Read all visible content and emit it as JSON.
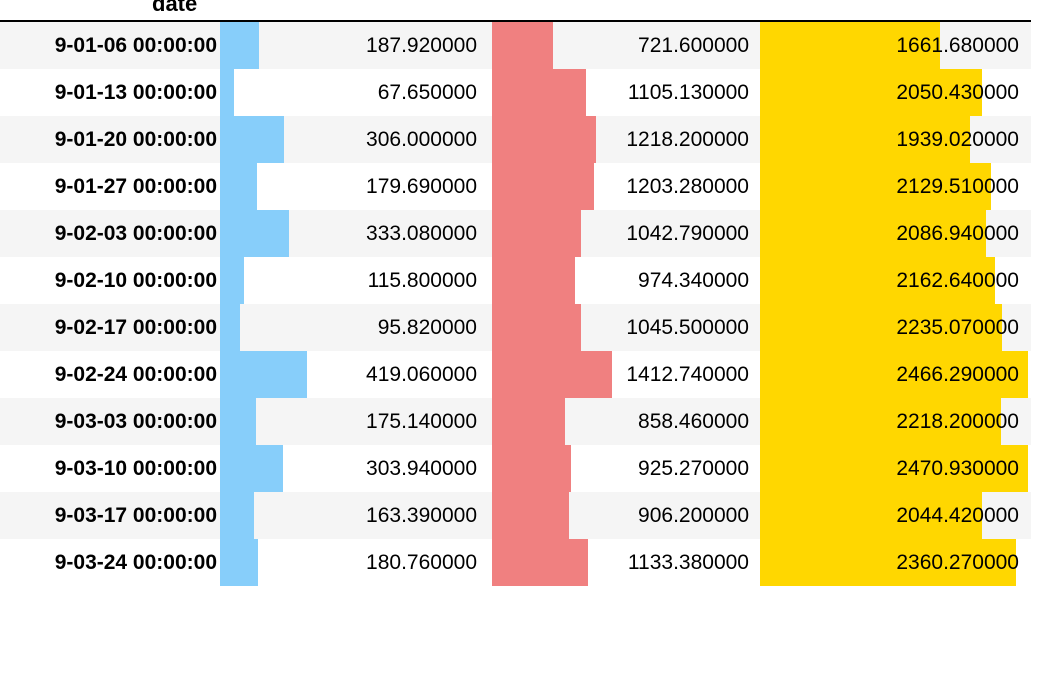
{
  "header": {
    "index_label": "date"
  },
  "colors": {
    "col1_bar": "#87cefa",
    "col2_bar": "#f08080",
    "col3_bar": "#ffd700",
    "row_even": "#f5f5f5",
    "row_odd": "#ffffff"
  },
  "rows": [
    {
      "date": "9-01-06 00:00:00",
      "c1": "187.920000",
      "c2": "721.600000",
      "c3": "1661.680000",
      "v1": 187.92,
      "v2": 721.6,
      "v3": 1661.68
    },
    {
      "date": "9-01-13 00:00:00",
      "c1": "67.650000",
      "c2": "1105.130000",
      "c3": "2050.430000",
      "v1": 67.65,
      "v2": 1105.13,
      "v3": 2050.43
    },
    {
      "date": "9-01-20 00:00:00",
      "c1": "306.000000",
      "c2": "1218.200000",
      "c3": "1939.020000",
      "v1": 306.0,
      "v2": 1218.2,
      "v3": 1939.02
    },
    {
      "date": "9-01-27 00:00:00",
      "c1": "179.690000",
      "c2": "1203.280000",
      "c3": "2129.510000",
      "v1": 179.69,
      "v2": 1203.28,
      "v3": 2129.51
    },
    {
      "date": "9-02-03 00:00:00",
      "c1": "333.080000",
      "c2": "1042.790000",
      "c3": "2086.940000",
      "v1": 333.08,
      "v2": 1042.79,
      "v3": 2086.94
    },
    {
      "date": "9-02-10 00:00:00",
      "c1": "115.800000",
      "c2": "974.340000",
      "c3": "2162.640000",
      "v1": 115.8,
      "v2": 974.34,
      "v3": 2162.64
    },
    {
      "date": "9-02-17 00:00:00",
      "c1": "95.820000",
      "c2": "1045.500000",
      "c3": "2235.070000",
      "v1": 95.82,
      "v2": 1045.5,
      "v3": 2235.07
    },
    {
      "date": "9-02-24 00:00:00",
      "c1": "419.060000",
      "c2": "1412.740000",
      "c3": "2466.290000",
      "v1": 419.06,
      "v2": 1412.74,
      "v3": 2466.29
    },
    {
      "date": "9-03-03 00:00:00",
      "c1": "175.140000",
      "c2": "858.460000",
      "c3": "2218.200000",
      "v1": 175.14,
      "v2": 858.46,
      "v3": 2218.2
    },
    {
      "date": "9-03-10 00:00:00",
      "c1": "303.940000",
      "c2": "925.270000",
      "c3": "2470.930000",
      "v1": 303.94,
      "v2": 925.27,
      "v3": 2470.93
    },
    {
      "date": "9-03-17 00:00:00",
      "c1": "163.390000",
      "c2": "906.200000",
      "c3": "2044.420000",
      "v1": 163.39,
      "v2": 906.2,
      "v3": 2044.42
    },
    {
      "date": "9-03-24 00:00:00",
      "c1": "180.760000",
      "c2": "1133.380000",
      "c3": "2360.270000",
      "v1": 180.76,
      "v2": 1133.38,
      "v3": 2360.27
    }
  ]
}
